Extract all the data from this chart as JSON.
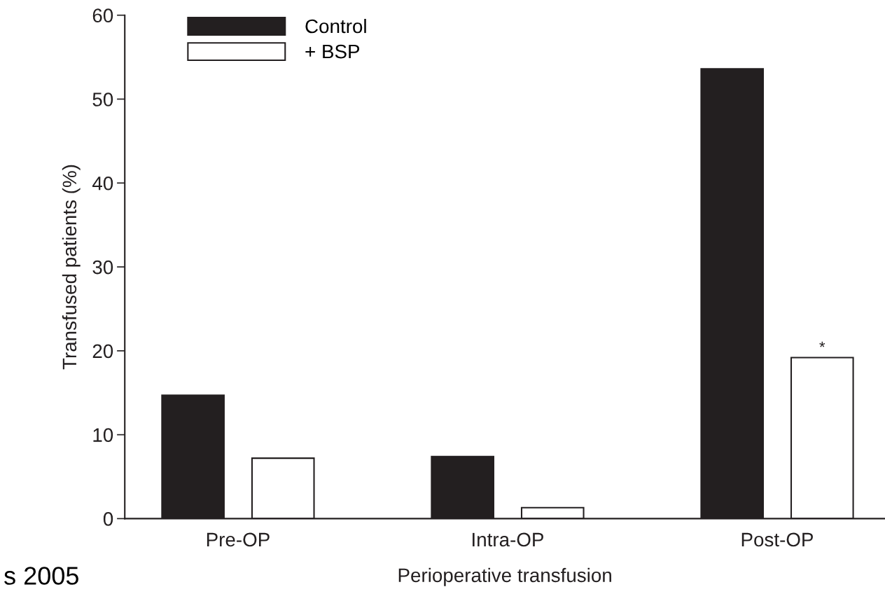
{
  "chart_data": {
    "type": "bar",
    "xlabel": "Perioperative transfusion",
    "ylabel": "Transfused patients (%)",
    "categories": [
      "Pre-OP",
      "Intra-OP",
      "Post-OP"
    ],
    "series": [
      {
        "name": "Control",
        "color": "#231f20",
        "values": [
          14.7,
          7.4,
          53.6
        ]
      },
      {
        "name": "+ BSP",
        "color": "#ffffff",
        "values": [
          7.2,
          1.3,
          19.2
        ]
      }
    ],
    "ylim": [
      0,
      60
    ],
    "yticks": [
      0,
      10,
      20,
      30,
      40,
      50,
      60
    ],
    "grid": false,
    "legend": "top left",
    "annotations": [
      "*",
      "s 2005"
    ]
  }
}
